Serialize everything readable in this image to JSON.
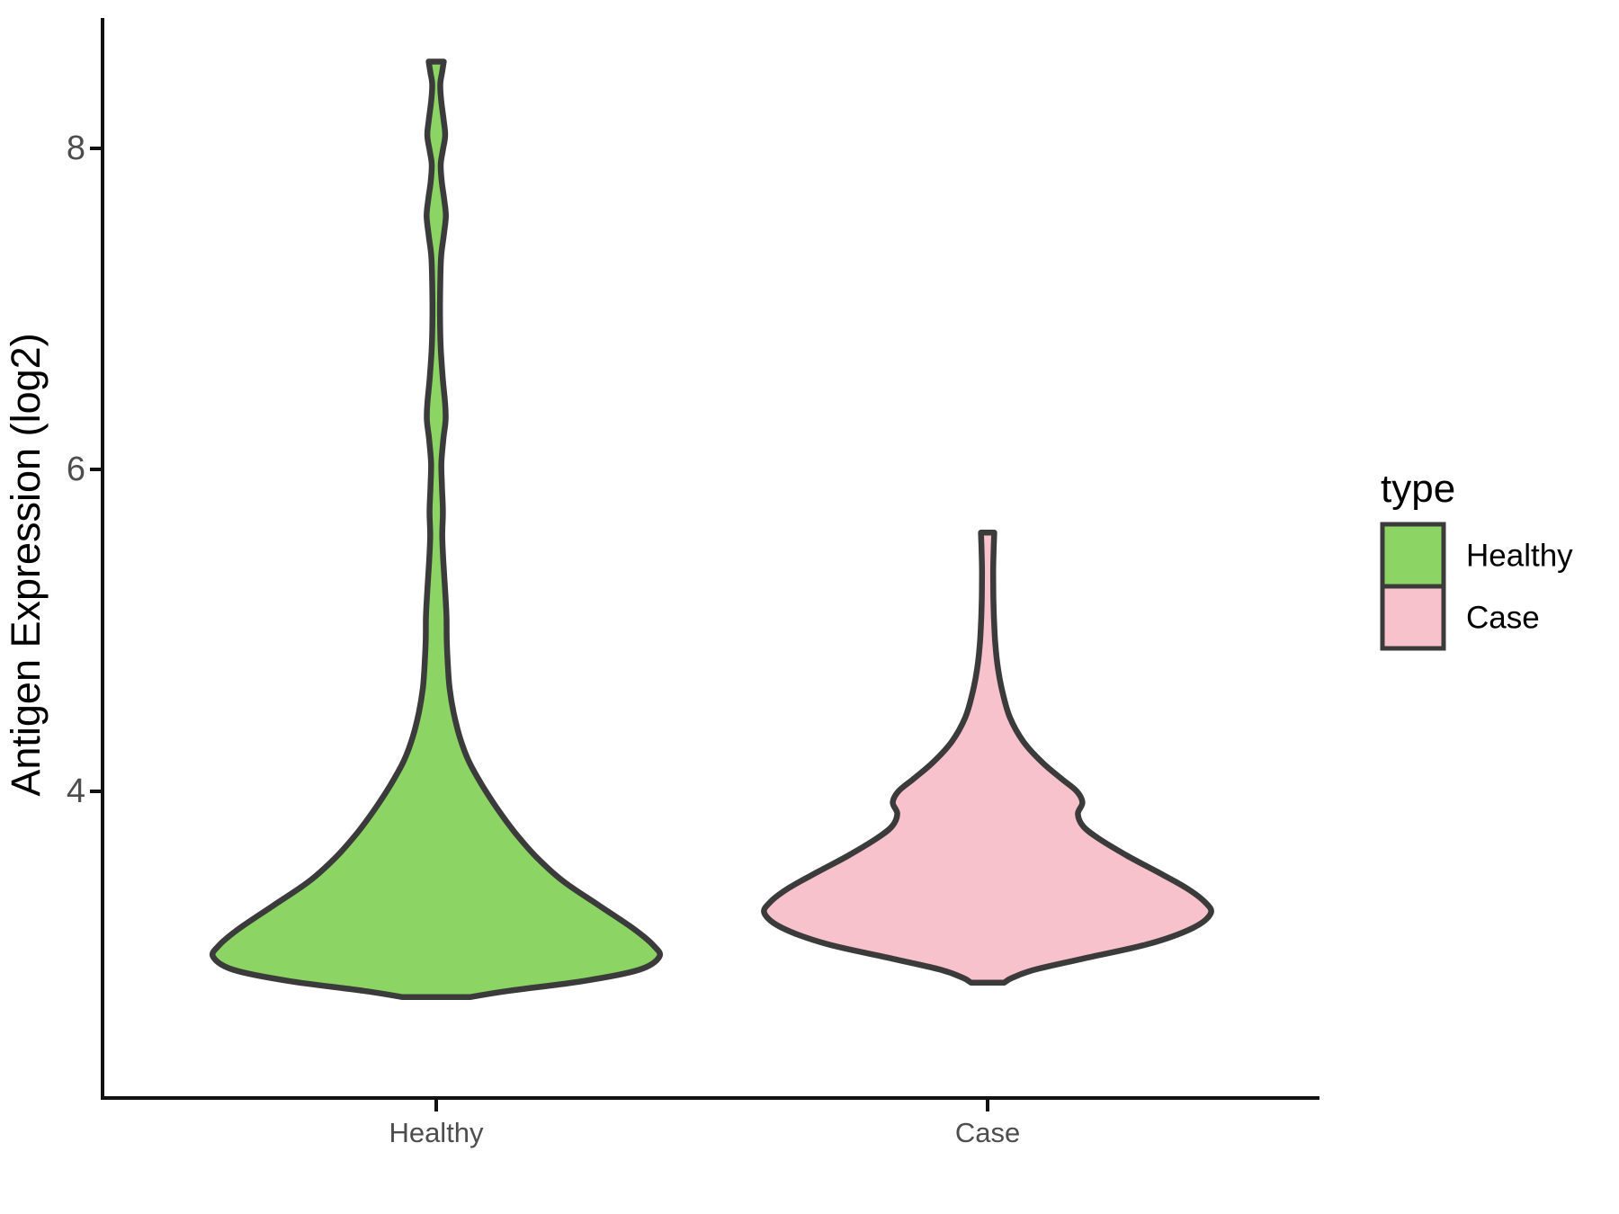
{
  "figure": {
    "background": "#FFFFFF"
  },
  "chart_data": {
    "type": "violin",
    "title": "",
    "xlabel": "",
    "ylabel": "Antigen Expression (log2)",
    "categories": [
      "Healthy",
      "Case"
    ],
    "y_ticks": [
      "4",
      "6",
      "8"
    ],
    "y_axis_range": [
      2.1,
      8.8
    ],
    "grid": "off",
    "legend_position": "right",
    "legend": {
      "title": "type",
      "entries": [
        {
          "label": "Healthy",
          "color": "#8CD564"
        },
        {
          "label": "Case",
          "color": "#F8C2CD"
        }
      ]
    },
    "style": {
      "outline_color": "#3B3B3B",
      "axis_color": "#111111",
      "tick_label_color": "#4D4D4D",
      "title_color": "#000000"
    },
    "series": [
      {
        "name": "Healthy",
        "x": "Healthy",
        "color": "#8CD564",
        "min": 2.72,
        "max": 8.54,
        "peak_value": 2.97,
        "profile": [
          [
            8.54,
            0.034
          ],
          [
            8.47,
            0.026
          ],
          [
            8.4,
            0.018
          ],
          [
            8.3,
            0.022
          ],
          [
            8.17,
            0.034
          ],
          [
            8.08,
            0.04
          ],
          [
            7.99,
            0.03
          ],
          [
            7.9,
            0.02
          ],
          [
            7.79,
            0.025
          ],
          [
            7.68,
            0.036
          ],
          [
            7.58,
            0.043
          ],
          [
            7.46,
            0.034
          ],
          [
            7.33,
            0.022
          ],
          [
            7.16,
            0.018
          ],
          [
            6.96,
            0.017
          ],
          [
            6.76,
            0.02
          ],
          [
            6.56,
            0.03
          ],
          [
            6.41,
            0.04
          ],
          [
            6.31,
            0.042
          ],
          [
            6.19,
            0.032
          ],
          [
            6.04,
            0.023
          ],
          [
            5.89,
            0.026
          ],
          [
            5.74,
            0.03
          ],
          [
            5.59,
            0.027
          ],
          [
            5.43,
            0.032
          ],
          [
            5.25,
            0.04
          ],
          [
            5.09,
            0.046
          ],
          [
            4.94,
            0.047
          ],
          [
            4.79,
            0.052
          ],
          [
            4.64,
            0.06
          ],
          [
            4.49,
            0.078
          ],
          [
            4.34,
            0.105
          ],
          [
            4.19,
            0.145
          ],
          [
            4.04,
            0.205
          ],
          [
            3.89,
            0.275
          ],
          [
            3.74,
            0.355
          ],
          [
            3.59,
            0.45
          ],
          [
            3.44,
            0.57
          ],
          [
            3.29,
            0.73
          ],
          [
            3.14,
            0.89
          ],
          [
            3.04,
            0.975
          ],
          [
            2.97,
            1.0
          ],
          [
            2.89,
            0.91
          ],
          [
            2.82,
            0.66
          ],
          [
            2.76,
            0.33
          ],
          [
            2.72,
            0.15
          ]
        ]
      },
      {
        "name": "Case",
        "x": "Case",
        "color": "#F8C2CD",
        "min": 2.81,
        "max": 5.61,
        "peak_value": 3.24,
        "profile": [
          [
            5.61,
            0.03
          ],
          [
            5.5,
            0.027
          ],
          [
            5.36,
            0.025
          ],
          [
            5.21,
            0.026
          ],
          [
            5.06,
            0.029
          ],
          [
            4.91,
            0.035
          ],
          [
            4.76,
            0.047
          ],
          [
            4.61,
            0.068
          ],
          [
            4.46,
            0.1
          ],
          [
            4.31,
            0.16
          ],
          [
            4.18,
            0.245
          ],
          [
            4.08,
            0.33
          ],
          [
            4.0,
            0.4
          ],
          [
            3.93,
            0.425
          ],
          [
            3.86,
            0.405
          ],
          [
            3.78,
            0.43
          ],
          [
            3.7,
            0.505
          ],
          [
            3.6,
            0.625
          ],
          [
            3.5,
            0.76
          ],
          [
            3.4,
            0.89
          ],
          [
            3.31,
            0.975
          ],
          [
            3.24,
            1.0
          ],
          [
            3.15,
            0.92
          ],
          [
            3.05,
            0.72
          ],
          [
            2.96,
            0.43
          ],
          [
            2.89,
            0.21
          ],
          [
            2.84,
            0.11
          ],
          [
            2.81,
            0.075
          ]
        ]
      }
    ]
  }
}
